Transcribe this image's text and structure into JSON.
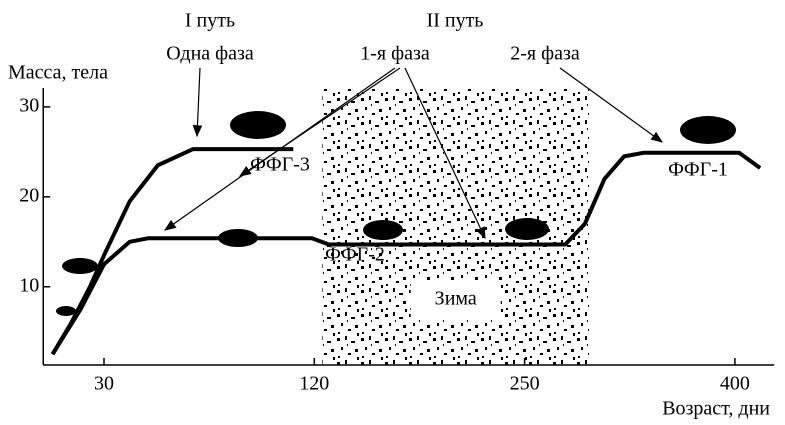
{
  "chart_data": {
    "type": "line",
    "y_label": "Масса, тела",
    "x_label": "Возраст, дни",
    "xlim": [
      4,
      428
    ],
    "xticks": [
      30,
      120,
      250,
      400
    ],
    "ylim": [
      1.3,
      32.1
    ],
    "yticks": [
      10,
      20,
      30
    ],
    "series": [
      {
        "color": "#000000",
        "x": [
          8,
          16,
          24,
          30,
          41,
          53,
          68,
          111
        ],
        "values": [
          2.5,
          6,
          10,
          13.5,
          19.5,
          23.5,
          25.3,
          25.3
        ]
      },
      {
        "color": "#000000",
        "x": [
          8,
          20,
          30,
          41,
          49,
          119,
          129,
          279,
          293,
          307,
          321,
          335,
          403,
          418
        ],
        "values": [
          2.5,
          7.5,
          12.5,
          15,
          15.4,
          15.4,
          14.7,
          14.7,
          17,
          22,
          24.5,
          24.9,
          24.9,
          23.2
        ]
      }
    ],
    "winter": {
      "label": "Зима",
      "span": [
        125,
        296
      ]
    },
    "annotations": [
      "I путь",
      "Одна фаза",
      "II путь",
      "1-я фаза",
      "2-я фаза",
      "ФФГ-3",
      "ФФГ-2",
      "ФФГ-1"
    ]
  }
}
